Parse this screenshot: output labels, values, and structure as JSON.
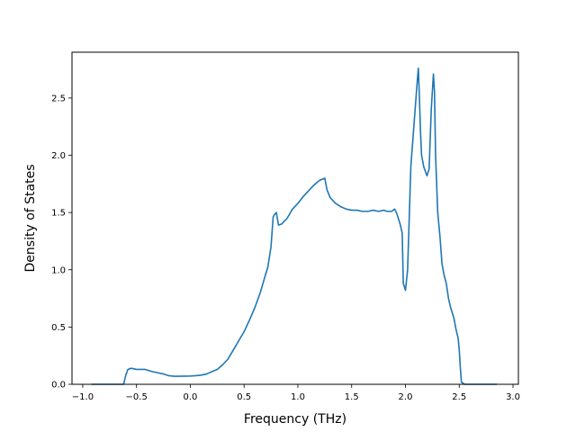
{
  "chart_data": {
    "type": "line",
    "title": "",
    "xlabel": "Frequency (THz)",
    "ylabel": "Density of States",
    "xlim": [
      -1.1,
      3.05
    ],
    "ylim": [
      0,
      2.9
    ],
    "grid": false,
    "x_ticks": [
      {
        "value": -1.0,
        "label": "−1.0"
      },
      {
        "value": -0.5,
        "label": "−0.5"
      },
      {
        "value": 0.0,
        "label": "0.0"
      },
      {
        "value": 0.5,
        "label": "0.5"
      },
      {
        "value": 1.0,
        "label": "1.0"
      },
      {
        "value": 1.5,
        "label": "1.5"
      },
      {
        "value": 2.0,
        "label": "2.0"
      },
      {
        "value": 2.5,
        "label": "2.5"
      },
      {
        "value": 3.0,
        "label": "3.0"
      }
    ],
    "y_ticks": [
      {
        "value": 0.0,
        "label": "0.0"
      },
      {
        "value": 0.5,
        "label": "0.5"
      },
      {
        "value": 1.0,
        "label": "1.0"
      },
      {
        "value": 1.5,
        "label": "1.5"
      },
      {
        "value": 2.0,
        "label": "2.0"
      },
      {
        "value": 2.5,
        "label": "2.5"
      }
    ],
    "series": [
      {
        "color": "#1f77b4",
        "x": [
          -0.92,
          -0.62,
          -0.6,
          -0.58,
          -0.55,
          -0.5,
          -0.42,
          -0.35,
          -0.3,
          -0.25,
          -0.2,
          -0.15,
          -0.1,
          0.0,
          0.05,
          0.1,
          0.15,
          0.2,
          0.25,
          0.3,
          0.35,
          0.4,
          0.45,
          0.5,
          0.55,
          0.6,
          0.65,
          0.7,
          0.72,
          0.75,
          0.77,
          0.78,
          0.8,
          0.82,
          0.85,
          0.9,
          0.95,
          1.0,
          1.05,
          1.1,
          1.15,
          1.2,
          1.25,
          1.27,
          1.3,
          1.35,
          1.4,
          1.45,
          1.5,
          1.55,
          1.6,
          1.65,
          1.7,
          1.75,
          1.8,
          1.83,
          1.87,
          1.9,
          1.92,
          1.95,
          1.97,
          1.98,
          2.0,
          2.02,
          2.05,
          2.07,
          2.09,
          2.11,
          2.12,
          2.13,
          2.14,
          2.15,
          2.17,
          2.2,
          2.22,
          2.24,
          2.26,
          2.27,
          2.28,
          2.3,
          2.32,
          2.34,
          2.36,
          2.38,
          2.4,
          2.42,
          2.45,
          2.47,
          2.49,
          2.5,
          2.51,
          2.52,
          2.55,
          2.6,
          2.7,
          2.85
        ],
        "y": [
          0.0,
          0.0,
          0.08,
          0.13,
          0.14,
          0.13,
          0.13,
          0.11,
          0.1,
          0.09,
          0.075,
          0.07,
          0.07,
          0.072,
          0.075,
          0.08,
          0.09,
          0.11,
          0.13,
          0.17,
          0.22,
          0.3,
          0.38,
          0.46,
          0.56,
          0.67,
          0.8,
          0.96,
          1.02,
          1.2,
          1.46,
          1.48,
          1.5,
          1.39,
          1.4,
          1.45,
          1.53,
          1.58,
          1.64,
          1.69,
          1.74,
          1.78,
          1.8,
          1.7,
          1.63,
          1.58,
          1.55,
          1.53,
          1.52,
          1.52,
          1.51,
          1.51,
          1.52,
          1.51,
          1.52,
          1.51,
          1.51,
          1.53,
          1.49,
          1.4,
          1.32,
          0.88,
          0.82,
          1.0,
          1.9,
          2.15,
          2.4,
          2.65,
          2.76,
          2.5,
          2.2,
          2.0,
          1.9,
          1.82,
          1.88,
          2.4,
          2.71,
          2.55,
          2.0,
          1.5,
          1.3,
          1.05,
          0.95,
          0.88,
          0.75,
          0.67,
          0.58,
          0.48,
          0.4,
          0.3,
          0.15,
          0.02,
          0.0,
          0.0,
          0.0,
          0.0
        ]
      }
    ]
  }
}
